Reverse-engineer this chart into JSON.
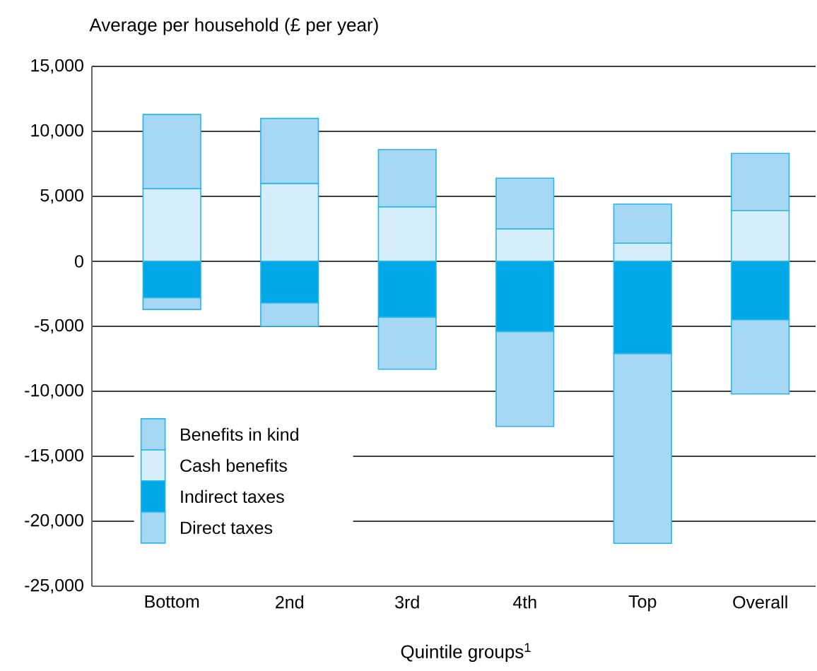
{
  "chart_data": {
    "type": "bar",
    "stacked": true,
    "ylabel": "Average per household (£ per year)",
    "xlabel": "Quintile groups$^{1}$",
    "categories": [
      "Bottom",
      "2nd",
      "3rd",
      "4th",
      "Top",
      "Overall"
    ],
    "series": [
      {
        "name": "Cash benefits",
        "color": "#d6eefb",
        "values": [
          5600,
          6000,
          4200,
          2500,
          1400,
          3900
        ]
      },
      {
        "name": "Benefits in kind",
        "color": "#a6d8f4",
        "values": [
          5700,
          5000,
          4400,
          3900,
          3000,
          4400
        ]
      },
      {
        "name": "Indirect taxes",
        "color": "#00a8e8",
        "values": [
          -2800,
          -3200,
          -4300,
          -5400,
          -7100,
          -4500
        ]
      },
      {
        "name": "Direct taxes",
        "color": "#a6d8f4",
        "values": [
          -900,
          -1800,
          -4000,
          -7300,
          -14600,
          -5700
        ]
      }
    ],
    "ylim": [
      -25000,
      15000
    ],
    "yticks": [
      {
        "value": -25000,
        "label": "-25,000"
      },
      {
        "value": -20000,
        "label": "-20,000"
      },
      {
        "value": -15000,
        "label": "-15,000"
      },
      {
        "value": -10000,
        "label": "-10,000"
      },
      {
        "value": -5000,
        "label": "-5,000"
      },
      0,
      {
        "value": 5000,
        "label": "5,000"
      },
      {
        "value": 10000,
        "label": "10,000"
      },
      {
        "value": 15000,
        "label": "15,000"
      }
    ],
    "grid": "y",
    "legend": "bottom left"
  }
}
